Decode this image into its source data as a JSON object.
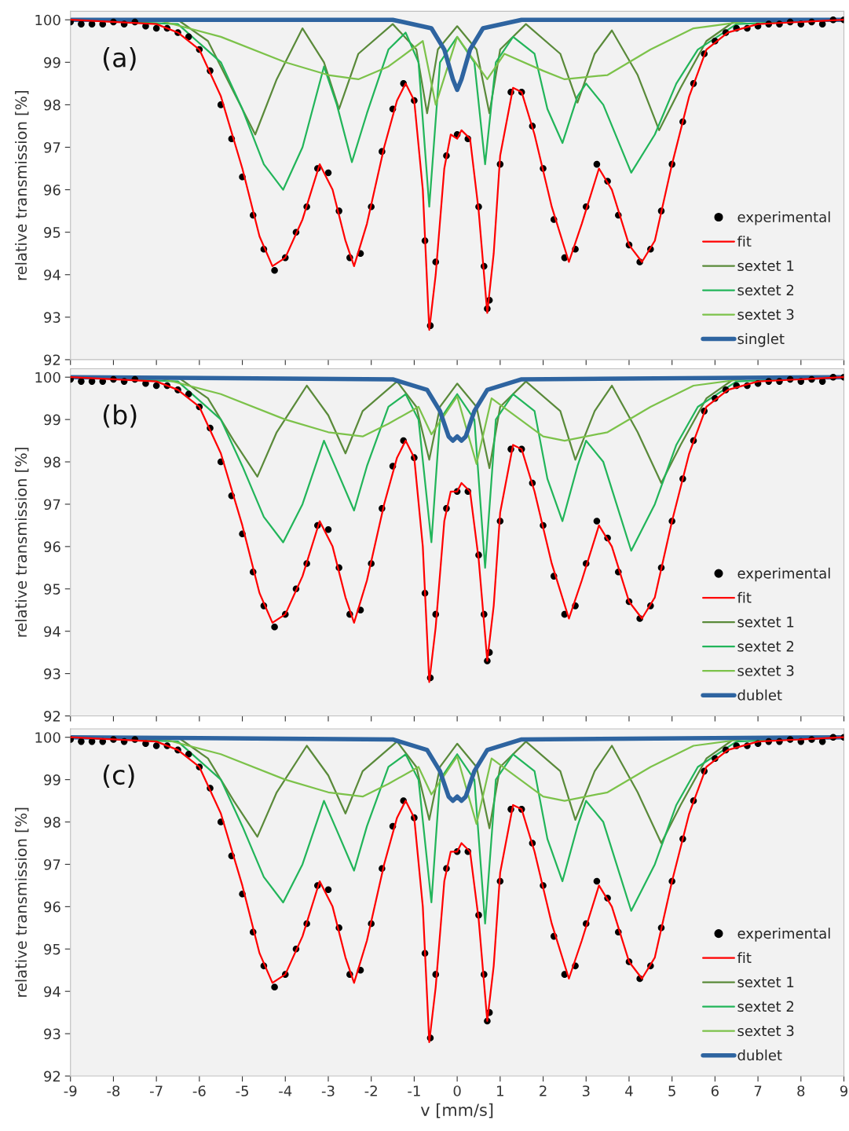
{
  "chart_data": [
    {
      "type": "line",
      "ylabel": "relative transmission [%]",
      "annotations": [
        "(a)"
      ],
      "xlim": [
        -9,
        9
      ],
      "ylim": [
        92,
        100.2
      ],
      "xticks": [
        -9,
        -8,
        -7,
        -6,
        -5,
        -4,
        -3,
        -2,
        -1,
        0,
        1,
        2,
        3,
        4,
        5,
        6,
        7,
        8,
        9
      ],
      "yticks": [
        92,
        93,
        94,
        95,
        96,
        97,
        98,
        99,
        100
      ],
      "tick_labels": "y",
      "legend": "bottom right",
      "grid": false,
      "series": [
        {
          "name": "experimental",
          "type": "scatter",
          "marker": "circle",
          "color": "#000000",
          "x": [
            -9,
            -8.75,
            -8.5,
            -8.25,
            -8,
            -7.75,
            -7.5,
            -7.25,
            -7,
            -6.75,
            -6.5,
            -6.25,
            -6,
            -5.75,
            -5.5,
            -5.25,
            -5,
            -4.75,
            -4.5,
            -4.25,
            -4,
            -3.75,
            -3.5,
            -3.25,
            -3,
            -2.75,
            -2.5,
            -2.25,
            -2,
            -1.75,
            -1.5,
            -1.25,
            -1,
            -0.75,
            -0.625,
            -0.5,
            -0.25,
            0,
            0.25,
            0.5,
            0.625,
            0.7,
            0.75,
            1,
            1.25,
            1.5,
            1.75,
            2,
            2.25,
            2.5,
            2.75,
            3,
            3.25,
            3.5,
            3.75,
            4,
            4.25,
            4.5,
            4.75,
            5,
            5.25,
            5.5,
            5.75,
            6,
            6.25,
            6.5,
            6.75,
            7,
            7.25,
            7.5,
            7.75,
            8,
            8.25,
            8.5,
            8.75,
            9
          ],
          "values": [
            99.95,
            99.9,
            99.9,
            99.9,
            99.95,
            99.9,
            99.95,
            99.85,
            99.8,
            99.8,
            99.7,
            99.6,
            99.3,
            98.8,
            98.0,
            97.2,
            96.3,
            95.4,
            94.6,
            94.1,
            94.4,
            95.0,
            95.6,
            96.5,
            96.4,
            95.5,
            94.4,
            94.5,
            95.6,
            96.9,
            97.9,
            98.5,
            98.1,
            94.8,
            92.8,
            94.3,
            96.8,
            97.3,
            97.2,
            95.6,
            94.2,
            93.2,
            93.4,
            96.6,
            98.3,
            98.3,
            97.5,
            96.5,
            95.3,
            94.4,
            94.6,
            95.6,
            96.6,
            96.2,
            95.4,
            94.7,
            94.3,
            94.6,
            95.5,
            96.6,
            97.6,
            98.5,
            99.2,
            99.5,
            99.7,
            99.8,
            99.8,
            99.85,
            99.9,
            99.9,
            99.95,
            99.9,
            99.95,
            99.9,
            100.0,
            100.0
          ]
        },
        {
          "name": "fit",
          "type": "line",
          "color": "#ff0000",
          "x": [
            -9,
            -7,
            -6.5,
            -6,
            -5.5,
            -5,
            -4.6,
            -4.3,
            -4,
            -3.6,
            -3.2,
            -2.9,
            -2.6,
            -2.4,
            -2.1,
            -1.7,
            -1.4,
            -1.2,
            -1,
            -0.8,
            -0.65,
            -0.5,
            -0.3,
            -0.15,
            0,
            0.1,
            0.3,
            0.5,
            0.7,
            0.85,
            1,
            1.3,
            1.5,
            1.8,
            2.2,
            2.6,
            2.9,
            3.3,
            3.6,
            4,
            4.3,
            4.6,
            5,
            5.4,
            5.8,
            6.3,
            7,
            9
          ],
          "values": [
            100,
            99.9,
            99.7,
            99.3,
            98.2,
            96.5,
            94.9,
            94.2,
            94.4,
            95.3,
            96.6,
            96.0,
            94.8,
            94.2,
            95.2,
            97.0,
            98.1,
            98.5,
            98.1,
            96.0,
            92.7,
            94.0,
            96.5,
            97.3,
            97.2,
            97.4,
            97.2,
            95.5,
            93.1,
            94.5,
            96.8,
            98.4,
            98.3,
            97.3,
            95.6,
            94.3,
            95.2,
            96.5,
            96.0,
            94.7,
            94.3,
            94.8,
            96.6,
            98.2,
            99.3,
            99.7,
            99.9,
            100
          ]
        },
        {
          "name": "sextet 1",
          "type": "line",
          "color": "#5a8a3a",
          "x": [
            -9,
            -6.5,
            -5.8,
            -5.2,
            -4.7,
            -4.2,
            -3.6,
            -3.1,
            -2.75,
            -2.3,
            -1.5,
            -0.95,
            -0.7,
            -0.45,
            0,
            0.45,
            0.75,
            1.0,
            1.6,
            2.4,
            2.8,
            3.2,
            3.6,
            4.2,
            4.7,
            5.2,
            5.8,
            6.5,
            9
          ],
          "values": [
            100,
            100,
            99.5,
            98.3,
            97.3,
            98.6,
            99.8,
            99.0,
            97.9,
            99.2,
            99.9,
            99.3,
            97.8,
            99.3,
            99.85,
            99.3,
            97.8,
            99.3,
            99.9,
            99.2,
            98.05,
            99.2,
            99.75,
            98.7,
            97.4,
            98.4,
            99.5,
            100,
            100
          ]
        },
        {
          "name": "sextet 2",
          "type": "line",
          "color": "#22b55a",
          "x": [
            -9,
            -6.5,
            -5.5,
            -5,
            -4.5,
            -4.05,
            -3.6,
            -3.1,
            -2.8,
            -2.45,
            -2.1,
            -1.6,
            -1.2,
            -0.9,
            -0.65,
            -0.4,
            0,
            0.4,
            0.65,
            0.9,
            1.3,
            1.8,
            2.1,
            2.45,
            2.8,
            3.0,
            3.4,
            4.05,
            4.6,
            5.1,
            5.6,
            6.5,
            9
          ],
          "values": [
            100,
            99.9,
            99.0,
            97.9,
            96.6,
            96.0,
            97.0,
            98.9,
            98.0,
            96.65,
            97.8,
            99.3,
            99.7,
            99.0,
            95.6,
            99.0,
            99.6,
            99.0,
            96.6,
            99.0,
            99.6,
            99.2,
            97.9,
            97.1,
            98.2,
            98.5,
            98.0,
            96.4,
            97.3,
            98.5,
            99.3,
            99.9,
            100
          ]
        },
        {
          "name": "sextet 3",
          "type": "line",
          "color": "#7cc24a",
          "x": [
            -9,
            -7,
            -5.5,
            -4,
            -3,
            -2.3,
            -1.6,
            -0.8,
            -0.5,
            0,
            0.7,
            1.1,
            2,
            2.5,
            3.5,
            4.5,
            5.5,
            7,
            9
          ],
          "values": [
            100,
            100,
            99.6,
            99.0,
            98.7,
            98.6,
            98.9,
            99.5,
            98.0,
            99.6,
            98.6,
            99.2,
            98.8,
            98.6,
            98.7,
            99.3,
            99.8,
            100,
            100
          ]
        },
        {
          "name": "singlet",
          "type": "line",
          "color": "#2e64a0",
          "x": [
            -9,
            -1.5,
            -0.6,
            -0.3,
            -0.1,
            0,
            0.1,
            0.3,
            0.6,
            1.5,
            9
          ],
          "values": [
            100,
            100,
            99.8,
            99.3,
            98.6,
            98.35,
            98.6,
            99.3,
            99.8,
            100,
            100
          ]
        }
      ]
    },
    {
      "type": "line",
      "ylabel": "relative transmission [%]",
      "annotations": [
        "(b)"
      ],
      "xlim": [
        -9,
        9
      ],
      "ylim": [
        92,
        100.2
      ],
      "xticks": [
        -9,
        -8,
        -7,
        -6,
        -5,
        -4,
        -3,
        -2,
        -1,
        0,
        1,
        2,
        3,
        4,
        5,
        6,
        7,
        8,
        9
      ],
      "yticks": [
        92,
        93,
        94,
        95,
        96,
        97,
        98,
        99,
        100
      ],
      "tick_labels": "y",
      "legend": "bottom right",
      "grid": false,
      "series": [
        {
          "name": "experimental",
          "type": "scatter",
          "marker": "circle",
          "color": "#000000",
          "x": [
            -9,
            -8.75,
            -8.5,
            -8.25,
            -8,
            -7.75,
            -7.5,
            -7.25,
            -7,
            -6.75,
            -6.5,
            -6.25,
            -6,
            -5.75,
            -5.5,
            -5.25,
            -5,
            -4.75,
            -4.5,
            -4.25,
            -4,
            -3.75,
            -3.5,
            -3.25,
            -3,
            -2.75,
            -2.5,
            -2.25,
            -2,
            -1.75,
            -1.5,
            -1.25,
            -1,
            -0.75,
            -0.625,
            -0.5,
            -0.25,
            0,
            0.25,
            0.5,
            0.625,
            0.7,
            0.75,
            1,
            1.25,
            1.5,
            1.75,
            2,
            2.25,
            2.5,
            2.75,
            3,
            3.25,
            3.5,
            3.75,
            4,
            4.25,
            4.5,
            4.75,
            5,
            5.25,
            5.5,
            5.75,
            6,
            6.25,
            6.5,
            6.75,
            7,
            7.25,
            7.5,
            7.75,
            8,
            8.25,
            8.5,
            8.75,
            9
          ],
          "values": [
            99.95,
            99.9,
            99.9,
            99.9,
            99.95,
            99.9,
            99.95,
            99.85,
            99.8,
            99.8,
            99.7,
            99.6,
            99.3,
            98.8,
            98.0,
            97.2,
            96.3,
            95.4,
            94.6,
            94.1,
            94.4,
            95.0,
            95.6,
            96.5,
            96.4,
            95.5,
            94.4,
            94.5,
            95.6,
            96.9,
            97.9,
            98.5,
            98.1,
            94.9,
            92.9,
            94.4,
            96.9,
            97.3,
            97.3,
            95.8,
            94.4,
            93.3,
            93.5,
            96.6,
            98.3,
            98.3,
            97.5,
            96.5,
            95.3,
            94.4,
            94.6,
            95.6,
            96.6,
            96.2,
            95.4,
            94.7,
            94.3,
            94.6,
            95.5,
            96.6,
            97.6,
            98.5,
            99.2,
            99.5,
            99.7,
            99.8,
            99.8,
            99.85,
            99.9,
            99.9,
            99.95,
            99.9,
            99.95,
            99.9,
            100.0,
            100.0
          ]
        },
        {
          "name": "fit",
          "type": "line",
          "color": "#ff0000",
          "x": [
            -9,
            -7,
            -6.5,
            -6,
            -5.5,
            -5,
            -4.6,
            -4.3,
            -4,
            -3.6,
            -3.2,
            -2.9,
            -2.6,
            -2.4,
            -2.1,
            -1.7,
            -1.4,
            -1.2,
            -1,
            -0.8,
            -0.65,
            -0.5,
            -0.3,
            -0.15,
            0,
            0.1,
            0.3,
            0.5,
            0.7,
            0.85,
            1,
            1.3,
            1.5,
            1.8,
            2.2,
            2.6,
            2.9,
            3.3,
            3.6,
            4,
            4.3,
            4.6,
            5,
            5.4,
            5.8,
            6.3,
            7,
            9
          ],
          "values": [
            100,
            99.9,
            99.7,
            99.3,
            98.2,
            96.5,
            94.9,
            94.2,
            94.4,
            95.3,
            96.6,
            96.0,
            94.8,
            94.2,
            95.2,
            97.0,
            98.1,
            98.5,
            98.1,
            96.0,
            92.8,
            94.1,
            96.6,
            97.3,
            97.3,
            97.5,
            97.3,
            95.7,
            93.3,
            94.6,
            96.8,
            98.4,
            98.3,
            97.3,
            95.6,
            94.3,
            95.2,
            96.5,
            96.0,
            94.7,
            94.3,
            94.8,
            96.6,
            98.2,
            99.3,
            99.7,
            99.9,
            100
          ]
        },
        {
          "name": "sextet 1",
          "type": "line",
          "color": "#5a8a3a",
          "x": [
            -9,
            -6.5,
            -5.8,
            -5.2,
            -4.65,
            -4.2,
            -3.5,
            -3.0,
            -2.6,
            -2.2,
            -1.4,
            -0.95,
            -0.65,
            -0.4,
            0,
            0.45,
            0.75,
            1.0,
            1.6,
            2.4,
            2.75,
            3.2,
            3.6,
            4.2,
            4.75,
            5.2,
            5.8,
            6.5,
            9
          ],
          "values": [
            100,
            100,
            99.5,
            98.5,
            97.65,
            98.7,
            99.8,
            99.1,
            98.2,
            99.2,
            99.9,
            99.3,
            98.05,
            99.3,
            99.85,
            99.3,
            97.85,
            99.3,
            99.9,
            99.2,
            98.05,
            99.2,
            99.8,
            98.7,
            97.5,
            98.4,
            99.5,
            100,
            100
          ]
        },
        {
          "name": "sextet 2",
          "type": "line",
          "color": "#22b55a",
          "x": [
            -9,
            -6.5,
            -5.5,
            -5,
            -4.5,
            -4.05,
            -3.6,
            -3.1,
            -2.8,
            -2.4,
            -2.1,
            -1.6,
            -1.2,
            -0.9,
            -0.6,
            -0.4,
            0,
            0.4,
            0.65,
            0.9,
            1.3,
            1.8,
            2.1,
            2.45,
            2.8,
            3.0,
            3.4,
            4.05,
            4.6,
            5.1,
            5.6,
            6.5,
            9
          ],
          "values": [
            100,
            99.9,
            99.0,
            97.9,
            96.7,
            96.1,
            97.0,
            98.5,
            97.8,
            96.85,
            97.9,
            99.3,
            99.6,
            99.0,
            96.1,
            99.0,
            99.6,
            99.0,
            95.5,
            99.0,
            99.6,
            99.2,
            97.6,
            96.6,
            97.9,
            98.5,
            98.0,
            95.9,
            97.0,
            98.4,
            99.3,
            99.9,
            100
          ]
        },
        {
          "name": "sextet 3",
          "type": "line",
          "color": "#7cc24a",
          "x": [
            -9,
            -7,
            -5.5,
            -4,
            -3,
            -2.2,
            -1.6,
            -0.9,
            -0.6,
            0,
            0.45,
            0.8,
            1.2,
            2,
            2.5,
            3.5,
            4.5,
            5.5,
            7,
            9
          ],
          "values": [
            100,
            100,
            99.6,
            99.0,
            98.7,
            98.6,
            98.9,
            99.3,
            98.65,
            99.55,
            97.95,
            99.5,
            99.2,
            98.6,
            98.5,
            98.7,
            99.3,
            99.8,
            100,
            100
          ]
        },
        {
          "name": "dublet",
          "type": "line",
          "color": "#2e64a0",
          "x": [
            -9,
            -1.5,
            -0.7,
            -0.4,
            -0.2,
            -0.1,
            0,
            0.1,
            0.2,
            0.4,
            0.7,
            1.5,
            9
          ],
          "values": [
            100,
            99.95,
            99.7,
            99.2,
            98.6,
            98.5,
            98.6,
            98.5,
            98.6,
            99.2,
            99.7,
            99.95,
            100
          ]
        }
      ]
    },
    {
      "type": "line",
      "xlabel": "v [mm/s]",
      "ylabel": "relative transmission [%]",
      "annotations": [
        "(c)"
      ],
      "xlim": [
        -9,
        9
      ],
      "ylim": [
        92,
        100.2
      ],
      "xticks": [
        -9,
        -8,
        -7,
        -6,
        -5,
        -4,
        -3,
        -2,
        -1,
        0,
        1,
        2,
        3,
        4,
        5,
        6,
        7,
        8,
        9
      ],
      "yticks": [
        92,
        93,
        94,
        95,
        96,
        97,
        98,
        99,
        100
      ],
      "legend": "bottom right",
      "grid": false,
      "series": [
        {
          "name": "experimental",
          "type": "scatter",
          "marker": "circle",
          "color": "#000000",
          "x": [
            -9,
            -8.75,
            -8.5,
            -8.25,
            -8,
            -7.75,
            -7.5,
            -7.25,
            -7,
            -6.75,
            -6.5,
            -6.25,
            -6,
            -5.75,
            -5.5,
            -5.25,
            -5,
            -4.75,
            -4.5,
            -4.25,
            -4,
            -3.75,
            -3.5,
            -3.25,
            -3,
            -2.75,
            -2.5,
            -2.25,
            -2,
            -1.75,
            -1.5,
            -1.25,
            -1,
            -0.75,
            -0.625,
            -0.5,
            -0.25,
            0,
            0.25,
            0.5,
            0.625,
            0.7,
            0.75,
            1,
            1.25,
            1.5,
            1.75,
            2,
            2.25,
            2.5,
            2.75,
            3,
            3.25,
            3.5,
            3.75,
            4,
            4.25,
            4.5,
            4.75,
            5,
            5.25,
            5.5,
            5.75,
            6,
            6.25,
            6.5,
            6.75,
            7,
            7.25,
            7.5,
            7.75,
            8,
            8.25,
            8.5,
            8.75,
            9
          ],
          "values": [
            99.95,
            99.9,
            99.9,
            99.9,
            99.95,
            99.9,
            99.95,
            99.85,
            99.8,
            99.8,
            99.7,
            99.6,
            99.3,
            98.8,
            98.0,
            97.2,
            96.3,
            95.4,
            94.6,
            94.1,
            94.4,
            95.0,
            95.6,
            96.5,
            96.4,
            95.5,
            94.4,
            94.5,
            95.6,
            96.9,
            97.9,
            98.5,
            98.1,
            94.9,
            92.9,
            94.4,
            96.9,
            97.3,
            97.3,
            95.8,
            94.4,
            93.3,
            93.5,
            96.6,
            98.3,
            98.3,
            97.5,
            96.5,
            95.3,
            94.4,
            94.6,
            95.6,
            96.6,
            96.2,
            95.4,
            94.7,
            94.3,
            94.6,
            95.5,
            96.6,
            97.6,
            98.5,
            99.2,
            99.5,
            99.7,
            99.8,
            99.8,
            99.85,
            99.9,
            99.9,
            99.95,
            99.9,
            99.95,
            99.9,
            100.0,
            100.0
          ]
        },
        {
          "name": "fit",
          "type": "line",
          "color": "#ff0000",
          "x": [
            -9,
            -7,
            -6.5,
            -6,
            -5.5,
            -5,
            -4.6,
            -4.3,
            -4,
            -3.6,
            -3.2,
            -2.9,
            -2.6,
            -2.4,
            -2.1,
            -1.7,
            -1.4,
            -1.2,
            -1,
            -0.8,
            -0.65,
            -0.5,
            -0.3,
            -0.15,
            0,
            0.1,
            0.3,
            0.5,
            0.7,
            0.85,
            1,
            1.3,
            1.5,
            1.8,
            2.2,
            2.6,
            2.9,
            3.3,
            3.6,
            4,
            4.3,
            4.6,
            5,
            5.4,
            5.8,
            6.3,
            7,
            9
          ],
          "values": [
            100,
            99.9,
            99.7,
            99.3,
            98.2,
            96.5,
            94.9,
            94.2,
            94.4,
            95.3,
            96.6,
            96.0,
            94.8,
            94.2,
            95.2,
            97.0,
            98.1,
            98.5,
            98.1,
            96.0,
            92.8,
            94.1,
            96.6,
            97.3,
            97.3,
            97.5,
            97.3,
            95.7,
            93.3,
            94.6,
            96.8,
            98.4,
            98.3,
            97.3,
            95.6,
            94.3,
            95.2,
            96.5,
            96.0,
            94.7,
            94.3,
            94.8,
            96.6,
            98.2,
            99.3,
            99.7,
            99.9,
            100
          ]
        },
        {
          "name": "sextet 1",
          "type": "line",
          "color": "#5a8a3a",
          "x": [
            -9,
            -6.5,
            -5.8,
            -5.2,
            -4.65,
            -4.2,
            -3.5,
            -3.0,
            -2.6,
            -2.2,
            -1.4,
            -0.95,
            -0.65,
            -0.4,
            0,
            0.45,
            0.75,
            1.0,
            1.6,
            2.4,
            2.75,
            3.2,
            3.6,
            4.2,
            4.75,
            5.2,
            5.8,
            6.5,
            9
          ],
          "values": [
            100,
            100,
            99.5,
            98.5,
            97.65,
            98.7,
            99.8,
            99.1,
            98.2,
            99.2,
            99.9,
            99.3,
            98.05,
            99.3,
            99.85,
            99.3,
            97.85,
            99.3,
            99.9,
            99.2,
            98.05,
            99.2,
            99.8,
            98.7,
            97.5,
            98.4,
            99.5,
            100,
            100
          ]
        },
        {
          "name": "sextet 2",
          "type": "line",
          "color": "#22b55a",
          "x": [
            -9,
            -6.5,
            -5.5,
            -5,
            -4.5,
            -4.05,
            -3.6,
            -3.1,
            -2.8,
            -2.4,
            -2.1,
            -1.6,
            -1.2,
            -0.9,
            -0.6,
            -0.4,
            0,
            0.4,
            0.65,
            0.9,
            1.3,
            1.8,
            2.1,
            2.45,
            2.8,
            3.0,
            3.4,
            4.05,
            4.6,
            5.1,
            5.6,
            6.5,
            9
          ],
          "values": [
            100,
            99.9,
            99.0,
            97.9,
            96.7,
            96.1,
            97.0,
            98.5,
            97.8,
            96.85,
            97.9,
            99.3,
            99.6,
            99.0,
            96.1,
            99.0,
            99.6,
            99.0,
            95.6,
            99.0,
            99.6,
            99.2,
            97.6,
            96.6,
            97.9,
            98.5,
            98.0,
            95.9,
            97.0,
            98.4,
            99.3,
            99.9,
            100
          ]
        },
        {
          "name": "sextet 3",
          "type": "line",
          "color": "#7cc24a",
          "x": [
            -9,
            -7,
            -5.5,
            -4,
            -3,
            -2.2,
            -1.6,
            -0.9,
            -0.6,
            0,
            0.45,
            0.8,
            1.2,
            2,
            2.5,
            3.5,
            4.5,
            5.5,
            7,
            9
          ],
          "values": [
            100,
            100,
            99.6,
            99.0,
            98.7,
            98.6,
            98.9,
            99.3,
            98.65,
            99.55,
            97.95,
            99.5,
            99.2,
            98.6,
            98.5,
            98.7,
            99.3,
            99.8,
            100,
            100
          ]
        },
        {
          "name": "dublet",
          "type": "line",
          "color": "#2e64a0",
          "x": [
            -9,
            -1.5,
            -0.7,
            -0.4,
            -0.2,
            -0.1,
            0,
            0.1,
            0.2,
            0.4,
            0.7,
            1.5,
            9
          ],
          "values": [
            100,
            99.95,
            99.7,
            99.2,
            98.6,
            98.5,
            98.6,
            98.5,
            98.6,
            99.2,
            99.7,
            99.95,
            100
          ]
        }
      ]
    }
  ]
}
